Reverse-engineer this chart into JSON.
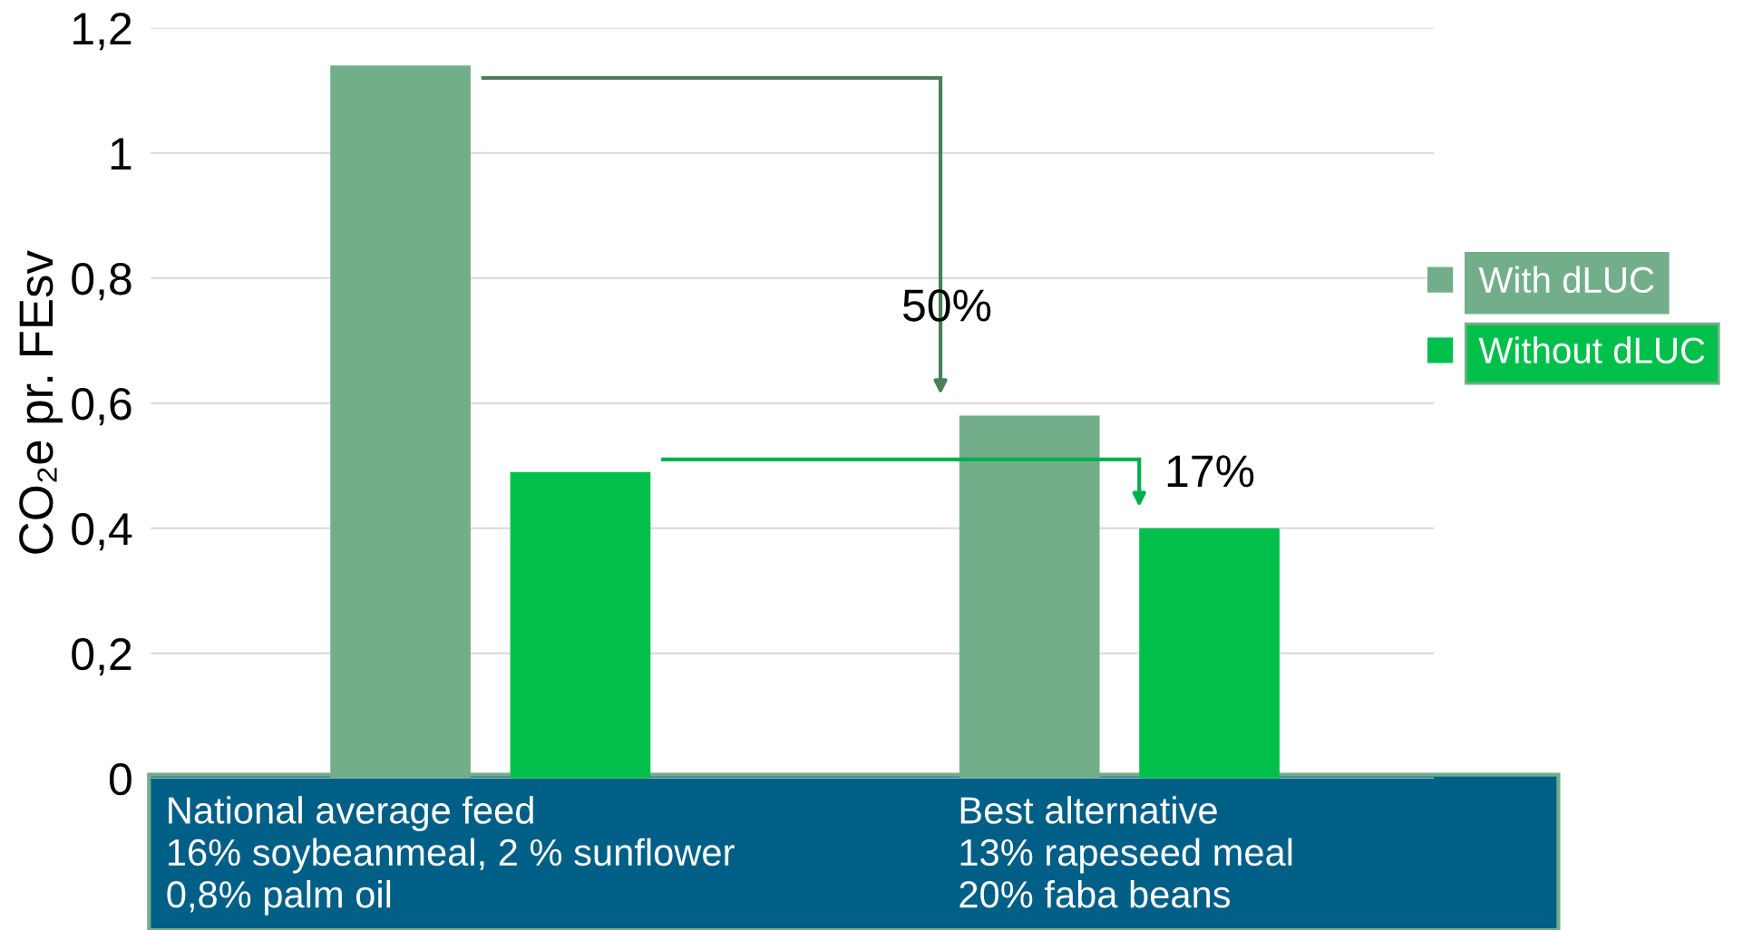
{
  "chart_data": {
    "type": "bar",
    "ylabel": "CO₂e pr. FEsv",
    "categories": [
      "National average feed\n16% soybeanmeal, 2 % sunflower\n0,8% palm oil",
      "Best alternative\n13% rapeseed meal\n20% faba beans"
    ],
    "series": [
      {
        "name": "With dLUC",
        "color": "#72ae8a",
        "values": [
          1.14,
          0.58
        ]
      },
      {
        "name": "Without dLUC",
        "color": "#00c04b",
        "values": [
          0.49,
          0.4
        ]
      }
    ],
    "ylim": [
      0,
      1.2
    ],
    "yticks": [
      0,
      {
        "value": 0.2,
        "label": "0,2"
      },
      {
        "value": 0.4,
        "label": "0,4"
      },
      {
        "value": 0.6,
        "label": "0,6"
      },
      {
        "value": 0.8,
        "label": "0,8"
      },
      1,
      {
        "value": 1.2,
        "label": "1,2"
      }
    ],
    "grid": "y",
    "legend": "right",
    "annotations": [
      "50%",
      "17%"
    ]
  }
}
